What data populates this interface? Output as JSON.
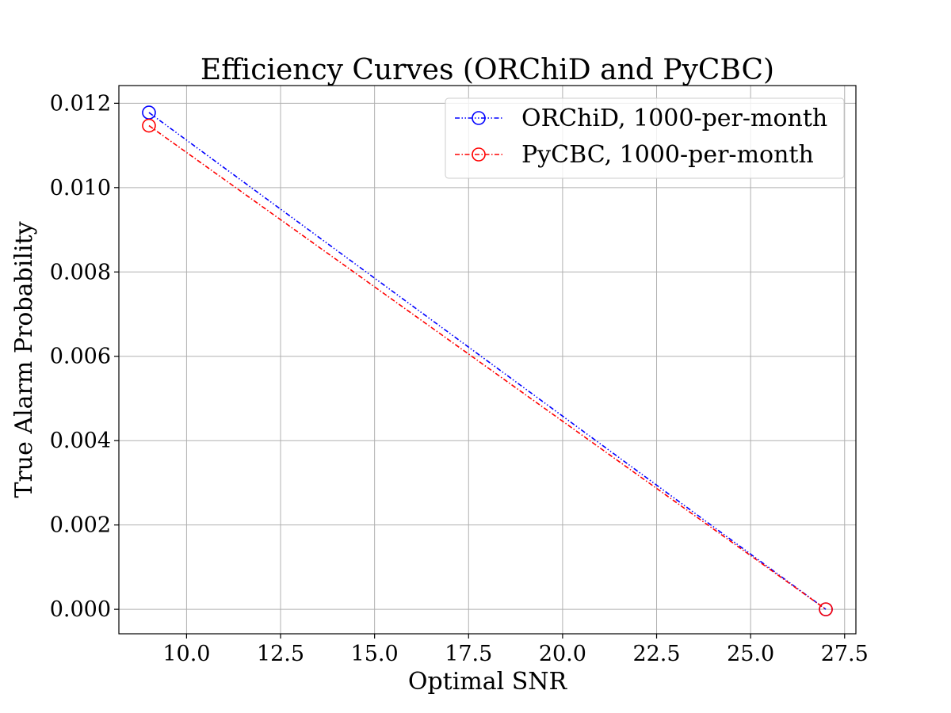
{
  "chart_data": {
    "type": "line",
    "title": "Efficiency Curves (ORChiD and PyCBC)",
    "xlabel": "Optimal SNR",
    "ylabel": "True Alarm Probability",
    "xlim": [
      8.2,
      27.8
    ],
    "ylim": [
      -0.00058,
      0.01242
    ],
    "xticks": [
      10.0,
      12.5,
      15.0,
      17.5,
      20.0,
      22.5,
      25.0,
      27.5
    ],
    "xtick_labels": [
      "10.0",
      "12.5",
      "15.0",
      "17.5",
      "20.0",
      "22.5",
      "25.0",
      "27.5"
    ],
    "yticks": [
      0.0,
      0.002,
      0.004,
      0.006,
      0.008,
      0.01,
      0.012
    ],
    "ytick_labels": [
      "0.000",
      "0.002",
      "0.004",
      "0.006",
      "0.008",
      "0.010",
      "0.012"
    ],
    "grid": true,
    "legend_position": "top-right",
    "series": [
      {
        "name": "ORChiD, 1000-per-month",
        "color": "#0000ff",
        "marker": "open-circle",
        "linestyle": "dash-dot-dot",
        "x": [
          9.0,
          27.0
        ],
        "y": [
          0.01178,
          0.0
        ]
      },
      {
        "name": "PyCBC, 1000-per-month",
        "color": "#ff0000",
        "marker": "open-circle",
        "linestyle": "dash-dot",
        "x": [
          9.0,
          27.0
        ],
        "y": [
          0.01147,
          0.0
        ]
      }
    ]
  }
}
